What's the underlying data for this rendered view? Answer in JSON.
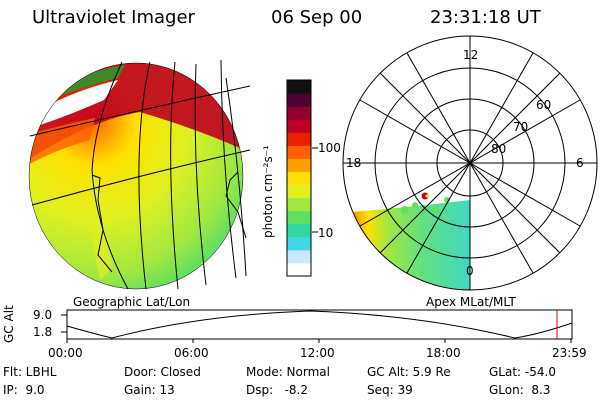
{
  "header": {
    "instrument": "Ultraviolet Imager",
    "date": "06 Sep 00",
    "time": "23:31:18 UT"
  },
  "colorbar": {
    "unit_label": "photon cm⁻²s⁻¹",
    "tick_100": "100",
    "tick_10": "10",
    "colors": [
      "#ffffff",
      "#c8e8ff",
      "#40d8e8",
      "#30d8a0",
      "#60e060",
      "#a0e840",
      "#e0f020",
      "#ffe000",
      "#ffa000",
      "#ff6000",
      "#e82000",
      "#c00020",
      "#900030",
      "#500030",
      "#101010"
    ]
  },
  "left_panel": {
    "label": "Geographic Lat/Lon"
  },
  "right_panel": {
    "label": "Apex MLat/MLT",
    "mlt_labels": {
      "top": "12",
      "left": "18",
      "right": "6",
      "bottom": "0"
    },
    "lat_labels": [
      "60",
      "70",
      "80"
    ]
  },
  "altitude_plot": {
    "axis_label": "GC Alt",
    "tick_high": "9.0",
    "tick_low": "1.8",
    "time_ticks": [
      "00:00",
      "06:00",
      "12:00",
      "18:00",
      "23:59"
    ]
  },
  "info": {
    "flt": "Flt: LBHL",
    "ip": "IP:  9.0",
    "door": "Door: Closed",
    "gain": "Gain: 13",
    "mode": "Mode: Normal",
    "dsp": "Dsp:   -8.2",
    "gc_alt": "GC Alt: 5.9 Re",
    "seq": "Seq: 39",
    "glat": "GLat: -54.0",
    "glon": "GLon:  8.3"
  }
}
